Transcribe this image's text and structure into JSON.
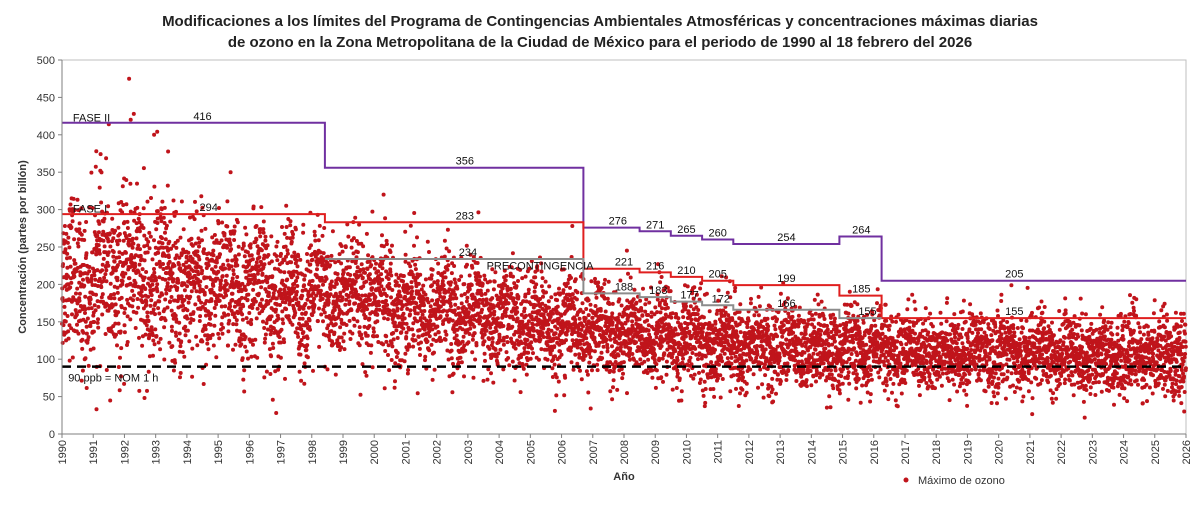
{
  "chart_data": {
    "type": "scatter",
    "title_lines": [
      "Modificaciones a los límites del Programa de Contingencias Ambientales Atmosféricas y concentraciones máximas diarias",
      "de ozono en la Zona Metropolitana de la Ciudad de México para el periodo de 1990 al 18 febrero del 2026"
    ],
    "xlabel": "Año",
    "ylabel": "Concentración (partes por billón)",
    "xlim": [
      1990,
      2026
    ],
    "ylim": [
      0,
      500
    ],
    "y_ticks": [
      0,
      50,
      100,
      150,
      200,
      250,
      300,
      350,
      400,
      450,
      500
    ],
    "x_ticks": [
      "1990",
      "1991",
      "1992",
      "1993",
      "1994",
      "1995",
      "1996",
      "1997",
      "1998",
      "1999",
      "2000",
      "2001",
      "2002",
      "2003",
      "2004",
      "2005",
      "2006",
      "2007",
      "2008",
      "2009",
      "2010",
      "2011",
      "2012",
      "2013",
      "2014",
      "2015",
      "2016",
      "2017",
      "2018",
      "2019",
      "2020",
      "2021",
      "2022",
      "2023",
      "2024",
      "2025",
      "2026"
    ],
    "legend": {
      "label": "Máximo de ozono",
      "color": "#c0141b",
      "position": "bottom-right"
    },
    "scatter_series": {
      "name": "Máximo de ozono",
      "color": "#c0141b",
      "note": "Daily maximum ozone concentrations; dense cloud rendered procedurally from yearly typical ranges",
      "yearly_profile": [
        {
          "year": 1990,
          "mean": 200,
          "spread": 60
        },
        {
          "year": 1992,
          "mean": 210,
          "spread": 65
        },
        {
          "year": 1995,
          "mean": 195,
          "spread": 55
        },
        {
          "year": 1998,
          "mean": 185,
          "spread": 50
        },
        {
          "year": 2001,
          "mean": 175,
          "spread": 45
        },
        {
          "year": 2004,
          "mean": 155,
          "spread": 40
        },
        {
          "year": 2007,
          "mean": 140,
          "spread": 38
        },
        {
          "year": 2010,
          "mean": 125,
          "spread": 35
        },
        {
          "year": 2014,
          "mean": 115,
          "spread": 32
        },
        {
          "year": 2018,
          "mean": 110,
          "spread": 30
        },
        {
          "year": 2022,
          "mean": 108,
          "spread": 30
        },
        {
          "year": 2026,
          "mean": 105,
          "spread": 30
        }
      ],
      "outliers": [
        {
          "x": 1992.15,
          "y": 475
        },
        {
          "x": 1992.3,
          "y": 428
        },
        {
          "x": 1991.5,
          "y": 414
        },
        {
          "x": 1992.2,
          "y": 420
        },
        {
          "x": 1992.95,
          "y": 400
        },
        {
          "x": 1993.05,
          "y": 404
        },
        {
          "x": 1991.1,
          "y": 378
        },
        {
          "x": 1995.4,
          "y": 350
        },
        {
          "x": 2000.3,
          "y": 320
        }
      ]
    },
    "step_series": [
      {
        "name": "FASE II",
        "color": "#7030a0",
        "steps": [
          {
            "from": 1990.0,
            "to": 1998.42,
            "value": 416
          },
          {
            "from": 1998.42,
            "to": 2006.7,
            "value": 356
          },
          {
            "from": 2006.7,
            "to": 2008.5,
            "value": 276
          },
          {
            "from": 2008.5,
            "to": 2009.5,
            "value": 271
          },
          {
            "from": 2009.5,
            "to": 2010.5,
            "value": 265
          },
          {
            "from": 2010.5,
            "to": 2011.5,
            "value": 260
          },
          {
            "from": 2011.5,
            "to": 2014.9,
            "value": 254
          },
          {
            "from": 2014.9,
            "to": 2016.25,
            "value": 264
          },
          {
            "from": 2016.25,
            "to": 2026.0,
            "value": 205
          }
        ]
      },
      {
        "name": "FASE I",
        "color": "#e01f1f",
        "steps": [
          {
            "from": 1990.0,
            "to": 1998.42,
            "value": 294
          },
          {
            "from": 1998.42,
            "to": 2006.7,
            "value": 283
          },
          {
            "from": 2006.7,
            "to": 2008.5,
            "value": 221
          },
          {
            "from": 2008.5,
            "to": 2009.5,
            "value": 216
          },
          {
            "from": 2009.5,
            "to": 2010.5,
            "value": 210
          },
          {
            "from": 2010.5,
            "to": 2011.5,
            "value": 205
          },
          {
            "from": 2011.5,
            "to": 2014.9,
            "value": 199
          },
          {
            "from": 2014.9,
            "to": 2016.25,
            "value": 185
          },
          {
            "from": 2016.25,
            "to": 2026.0,
            "value": 155
          }
        ]
      },
      {
        "name": "PRECONTINGENCIA",
        "color": "#8c8c8c",
        "steps": [
          {
            "from": 1998.42,
            "to": 2006.7,
            "value": 234
          },
          {
            "from": 2006.7,
            "to": 2008.5,
            "value": 188
          },
          {
            "from": 2008.5,
            "to": 2009.5,
            "value": 183
          },
          {
            "from": 2009.5,
            "to": 2010.5,
            "value": 177
          },
          {
            "from": 2010.5,
            "to": 2011.5,
            "value": 172
          },
          {
            "from": 2011.5,
            "to": 2014.9,
            "value": 166
          },
          {
            "from": 2014.9,
            "to": 2016.25,
            "value": 155
          }
        ]
      }
    ],
    "reference_line": {
      "label": "90 ppb = NOM 1 h",
      "value": 90,
      "color": "#000000",
      "style": "dashed"
    },
    "annotations": [
      {
        "text": "FASE II",
        "x": 1990.35,
        "y": 418,
        "anchor": "start"
      },
      {
        "text": "FASE I",
        "x": 1990.35,
        "y": 296,
        "anchor": "start"
      },
      {
        "text": "PRECONTINGENCIA",
        "x": 2003.6,
        "y": 220,
        "anchor": "start"
      },
      {
        "text": "90 ppb = NOM 1 h",
        "x": 1990.2,
        "y": 70,
        "anchor": "start"
      },
      {
        "text": "416",
        "x": 1994.5,
        "y": 420,
        "anchor": "middle"
      },
      {
        "text": "356",
        "x": 2002.9,
        "y": 360,
        "anchor": "middle"
      },
      {
        "text": "294",
        "x": 1994.7,
        "y": 298,
        "anchor": "middle"
      },
      {
        "text": "283",
        "x": 2002.9,
        "y": 287,
        "anchor": "middle"
      },
      {
        "text": "234",
        "x": 2003.0,
        "y": 238,
        "anchor": "middle"
      },
      {
        "text": "276",
        "x": 2007.8,
        "y": 280,
        "anchor": "middle"
      },
      {
        "text": "271",
        "x": 2009.0,
        "y": 275,
        "anchor": "middle"
      },
      {
        "text": "265",
        "x": 2010.0,
        "y": 269,
        "anchor": "middle"
      },
      {
        "text": "260",
        "x": 2011.0,
        "y": 264,
        "anchor": "middle"
      },
      {
        "text": "254",
        "x": 2013.2,
        "y": 258,
        "anchor": "middle"
      },
      {
        "text": "264",
        "x": 2015.6,
        "y": 268,
        "anchor": "middle"
      },
      {
        "text": "205",
        "x": 2020.5,
        "y": 209,
        "anchor": "middle"
      },
      {
        "text": "221",
        "x": 2008.0,
        "y": 225,
        "anchor": "middle"
      },
      {
        "text": "216",
        "x": 2009.0,
        "y": 220,
        "anchor": "middle"
      },
      {
        "text": "210",
        "x": 2010.0,
        "y": 214,
        "anchor": "middle"
      },
      {
        "text": "205",
        "x": 2011.0,
        "y": 209,
        "anchor": "middle"
      },
      {
        "text": "199",
        "x": 2013.2,
        "y": 203,
        "anchor": "middle"
      },
      {
        "text": "185",
        "x": 2015.6,
        "y": 189,
        "anchor": "middle"
      },
      {
        "text": "155",
        "x": 2020.5,
        "y": 159,
        "anchor": "middle"
      },
      {
        "text": "188",
        "x": 2008.0,
        "y": 192,
        "anchor": "middle"
      },
      {
        "text": "183",
        "x": 2009.1,
        "y": 187,
        "anchor": "middle"
      },
      {
        "text": "177",
        "x": 2010.1,
        "y": 181,
        "anchor": "middle"
      },
      {
        "text": "172",
        "x": 2011.1,
        "y": 176,
        "anchor": "middle"
      },
      {
        "text": "166",
        "x": 2013.2,
        "y": 170,
        "anchor": "middle"
      },
      {
        "text": "155",
        "x": 2015.8,
        "y": 159,
        "anchor": "middle"
      }
    ]
  }
}
